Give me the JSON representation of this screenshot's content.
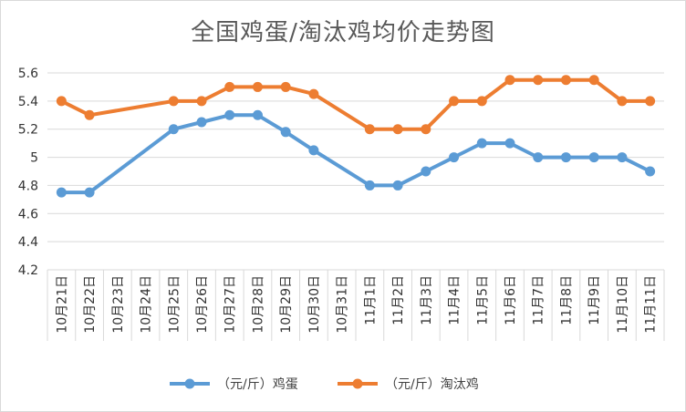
{
  "chart_data": {
    "type": "line",
    "title": "全国鸡蛋/淘汰鸡均价走势图",
    "xlabel": "",
    "ylabel": "",
    "categories": [
      "10月21日",
      "10月22日",
      "10月23日",
      "10月24日",
      "10月25日",
      "10月26日",
      "10月27日",
      "10月28日",
      "10月29日",
      "10月30日",
      "10月31日",
      "11月1日",
      "11月2日",
      "11月3日",
      "11月4日",
      "11月5日",
      "11月6日",
      "11月7日",
      "11月8日",
      "11月9日",
      "11月10日",
      "11月11日"
    ],
    "y_ticks": [
      "4.2",
      "4.4",
      "4.6",
      "4.8",
      "5",
      "5.2",
      "5.4",
      "5.6"
    ],
    "ylim": [
      4.2,
      5.6
    ],
    "grid": true,
    "legend_position": "bottom",
    "series": [
      {
        "name": "（元/斤）鸡蛋",
        "color": "#5b9bd5",
        "values": [
          4.75,
          4.75,
          null,
          null,
          5.2,
          5.25,
          5.3,
          5.3,
          5.18,
          5.05,
          null,
          4.8,
          4.8,
          4.9,
          5.0,
          5.1,
          5.1,
          5.0,
          5.0,
          5.0,
          5.0,
          4.9
        ]
      },
      {
        "name": "（元/斤）淘汰鸡",
        "color": "#ed7d31",
        "values": [
          5.4,
          5.3,
          null,
          null,
          5.4,
          5.4,
          5.5,
          5.5,
          5.5,
          5.45,
          null,
          5.2,
          5.2,
          5.2,
          5.4,
          5.4,
          5.55,
          5.55,
          5.55,
          5.55,
          5.4,
          5.4
        ]
      }
    ]
  }
}
